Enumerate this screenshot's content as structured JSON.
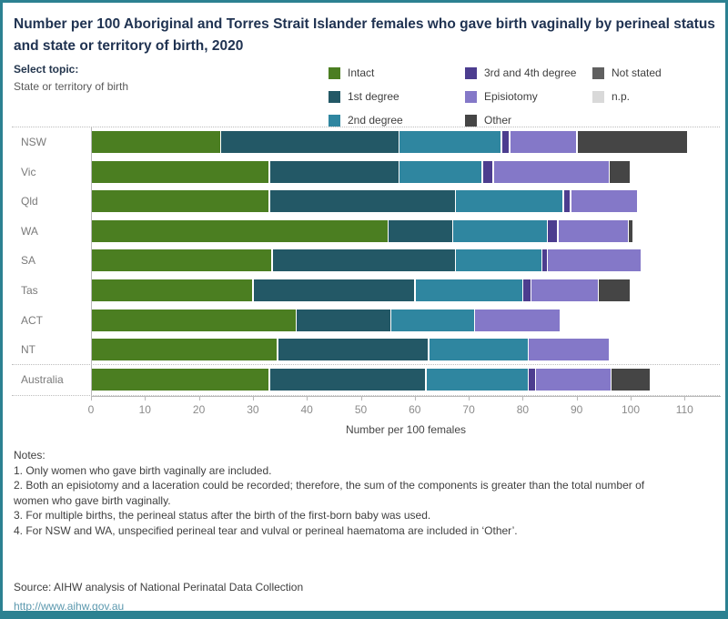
{
  "header": {
    "title": "Number per 100 Aboriginal and Torres Strait Islander females who gave birth vaginally by perineal status and state or territory of birth, 2020",
    "select_topic_label": "Select topic:",
    "select_topic_value": "State or territory of birth"
  },
  "legend": {
    "items": [
      {
        "label": "Intact",
        "color": "#4B7E21"
      },
      {
        "label": "1st degree",
        "color": "#235866"
      },
      {
        "label": "2nd degree",
        "color": "#2F86A0"
      },
      {
        "label": "3rd and 4th degree",
        "color": "#4C3D8F"
      },
      {
        "label": "Episiotomy",
        "color": "#8478C8"
      },
      {
        "label": "Other",
        "color": "#454545"
      },
      {
        "label": "Not stated",
        "color": "#606060"
      },
      {
        "label": "n.p.",
        "color": "#D9D9D9"
      }
    ],
    "columns": [
      3,
      3,
      2
    ]
  },
  "chart_data": {
    "type": "bar",
    "orientation": "horizontal",
    "stacked": true,
    "title": "Number per 100 Aboriginal and Torres Strait Islander females who gave birth vaginally by perineal status and state or territory of birth, 2020",
    "categories": [
      "NSW",
      "Vic",
      "Qld",
      "WA",
      "SA",
      "Tas",
      "ACT",
      "NT",
      "Australia"
    ],
    "series": [
      {
        "name": "Intact",
        "color": "#4B7E21",
        "values": [
          24,
          33,
          33,
          55,
          33.5,
          30,
          38,
          34.5,
          33
        ]
      },
      {
        "name": "1st degree",
        "color": "#235866",
        "values": [
          33,
          24,
          34.5,
          12,
          34,
          30,
          17.5,
          28,
          29
        ]
      },
      {
        "name": "2nd degree",
        "color": "#2F86A0",
        "values": [
          19,
          15.5,
          20,
          17.5,
          16,
          20,
          15.5,
          18.5,
          19
        ]
      },
      {
        "name": "3rd and 4th degree",
        "color": "#4C3D8F",
        "values": [
          1.5,
          2,
          1.3,
          2,
          1,
          1.5,
          0,
          0,
          1.3
        ]
      },
      {
        "name": "Episiotomy",
        "color": "#8478C8",
        "values": [
          12.5,
          21.5,
          12.5,
          13,
          17.5,
          12.5,
          16,
          15,
          14
        ]
      },
      {
        "name": "Other",
        "color": "#454545",
        "values": [
          20.5,
          4,
          0,
          1,
          0,
          6,
          0,
          0,
          7.3
        ]
      },
      {
        "name": "Not stated",
        "color": "#606060",
        "values": [
          0,
          0,
          0,
          0,
          0,
          0,
          0,
          0,
          0
        ]
      },
      {
        "name": "n.p.",
        "color": "#D9D9D9",
        "values": [
          0,
          0,
          0,
          0,
          0,
          0,
          0,
          0,
          0
        ]
      }
    ],
    "xlabel": "Number per 100 females",
    "x_ticks": [
      0,
      10,
      20,
      30,
      40,
      50,
      60,
      70,
      80,
      90,
      100,
      110
    ],
    "xlim": [
      0,
      116
    ],
    "grid": false,
    "legend_position": "top",
    "separator_before_category": "Australia"
  },
  "notes": {
    "heading": "Notes:",
    "items": [
      "1. Only women who gave birth vaginally are included.",
      "2. Both an episiotomy and a laceration could be recorded; therefore, the sum of the components is greater than the total number of women who gave birth vaginally.",
      "3. For multiple births, the perineal status after the birth of the first-born baby was used.",
      "4. For NSW and WA, unspecified perineal tear and vulval or perineal haematoma are included in ‘Other’."
    ]
  },
  "footer": {
    "source": "Source: AIHW analysis of National Perinatal Data Collection",
    "link": "http://www.aihw.gov.au"
  }
}
